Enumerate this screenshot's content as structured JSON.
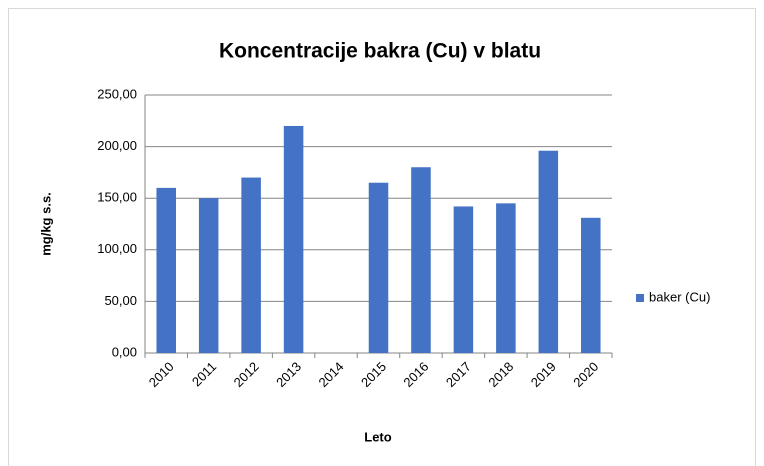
{
  "chart_data": {
    "type": "bar",
    "title": "Koncentracije bakra (Cu) v blatu",
    "x_label": "Leto",
    "y_label": "mg/kg s.s.",
    "categories": [
      "2010",
      "2011",
      "2012",
      "2013",
      "2014",
      "2015",
      "2016",
      "2017",
      "2018",
      "2019",
      "2020"
    ],
    "series": [
      {
        "name": "baker (Cu)",
        "color": "#4472c4",
        "values": [
          160,
          150,
          170,
          220,
          null,
          165,
          180,
          142,
          145,
          196,
          131
        ]
      }
    ],
    "ylim": [
      0,
      250
    ],
    "yticks": [
      {
        "value": 0,
        "label": "0,00"
      },
      {
        "value": 50,
        "label": "50,00"
      },
      {
        "value": 100,
        "label": "100,00"
      },
      {
        "value": 150,
        "label": "150,00"
      },
      {
        "value": 200,
        "label": "200,00"
      },
      {
        "value": 250,
        "label": "250,00"
      }
    ],
    "grid": true,
    "legend": "right"
  }
}
